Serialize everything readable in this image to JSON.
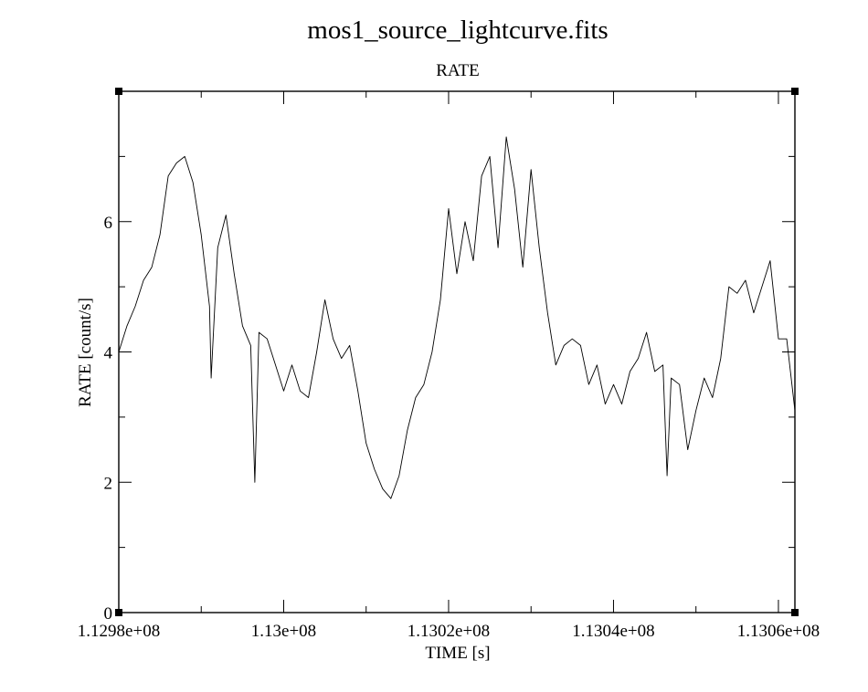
{
  "chart_data": {
    "type": "line",
    "title": "mos1_source_lightcurve.fits",
    "subtitle": "RATE",
    "xlabel": "TIME [s]",
    "ylabel": "RATE [count/s]",
    "xlim": [
      112980000,
      113062000
    ],
    "ylim": [
      0,
      8
    ],
    "x_ticks": [
      112980000,
      113000000,
      113020000,
      113040000,
      113060000
    ],
    "x_tick_labels": [
      "1.1298e+08",
      "1.13e+08",
      "1.1302e+08",
      "1.1304e+08",
      "1.1306e+08"
    ],
    "x_minor_ticks": [
      112990000,
      113010000,
      113030000,
      113050000
    ],
    "y_ticks": [
      0,
      2,
      4,
      6
    ],
    "y_tick_labels": [
      "0",
      "2",
      "4",
      "6"
    ],
    "y_minor_ticks": [
      1,
      3,
      5,
      7
    ],
    "grid": false,
    "line_color": "#000000",
    "series": [
      {
        "x": [
          112980000,
          112981000,
          112982000,
          112983000,
          112984000,
          112985000,
          112986000,
          112987000,
          112988000,
          112989000,
          112990000,
          112991000,
          112991200,
          112992000,
          112993000,
          112994000,
          112995000,
          112996000,
          112996500,
          112997000,
          112998000,
          112999000,
          113000000,
          113001000,
          113002000,
          113003000,
          113004000,
          113005000,
          113006000,
          113007000,
          113008000,
          113009000,
          113010000,
          113011000,
          113012000,
          113013000,
          113014000,
          113015000,
          113016000,
          113017000,
          113018000,
          113019000,
          113020000,
          113021000,
          113022000,
          113023000,
          113024000,
          113025000,
          113026000,
          113027000,
          113028000,
          113029000,
          113030000,
          113031000,
          113032000,
          113033000,
          113034000,
          113035000,
          113036000,
          113037000,
          113038000,
          113039000,
          113040000,
          113041000,
          113042000,
          113043000,
          113044000,
          113045000,
          113046000,
          113046500,
          113047000,
          113048000,
          113049000,
          113050000,
          113051000,
          113052000,
          113053000,
          113054000,
          113055000,
          113056000,
          113057000,
          113058000,
          113059000,
          113060000,
          113061000,
          113062000
        ],
        "y": [
          4.0,
          4.4,
          4.7,
          5.1,
          5.3,
          5.8,
          6.7,
          6.9,
          7.0,
          6.6,
          5.8,
          4.7,
          3.6,
          5.6,
          6.1,
          5.2,
          4.4,
          4.1,
          2.0,
          4.3,
          4.2,
          3.8,
          3.4,
          3.8,
          3.4,
          3.3,
          4.0,
          4.8,
          4.2,
          3.9,
          4.1,
          3.4,
          2.6,
          2.2,
          1.9,
          1.75,
          2.1,
          2.8,
          3.3,
          3.5,
          4.0,
          4.8,
          6.2,
          5.2,
          6.0,
          5.4,
          6.7,
          7.0,
          5.6,
          7.3,
          6.5,
          5.3,
          6.8,
          5.6,
          4.6,
          3.8,
          4.1,
          4.2,
          4.1,
          3.5,
          3.8,
          3.2,
          3.5,
          3.2,
          3.7,
          3.9,
          4.3,
          3.7,
          3.8,
          2.1,
          3.6,
          3.5,
          2.5,
          3.1,
          3.6,
          3.3,
          3.9,
          5.0,
          4.9,
          5.1,
          4.6,
          5.0,
          5.4,
          4.2,
          4.2,
          3.1
        ]
      }
    ]
  }
}
